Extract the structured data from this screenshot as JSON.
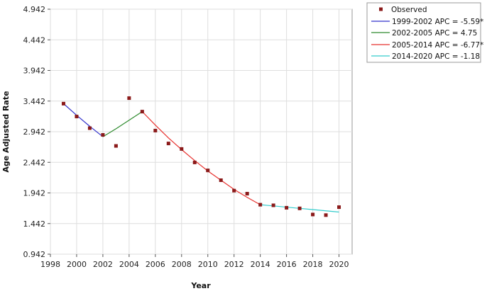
{
  "chart_data": {
    "type": "scatter",
    "xlabel": "Year",
    "ylabel": "Age Adjusted Rate",
    "xlim": [
      1998,
      2021
    ],
    "ylim": [
      0.942,
      4.942
    ],
    "x_ticks": [
      1998,
      2000,
      2002,
      2004,
      2006,
      2008,
      2010,
      2012,
      2014,
      2016,
      2018,
      2020
    ],
    "y_ticks": [
      0.942,
      1.442,
      1.942,
      2.442,
      2.942,
      3.442,
      3.942,
      4.442,
      4.942
    ],
    "x_tick_labels": [
      "1998",
      "2000",
      "2002",
      "2004",
      "2006",
      "2008",
      "2010",
      "2012",
      "2014",
      "2016",
      "2018",
      "2020"
    ],
    "y_tick_labels": [
      "0.942",
      "1.442",
      "1.942",
      "2.442",
      "2.942",
      "3.442",
      "3.942",
      "4.442",
      "4.942"
    ],
    "grid": true,
    "legend_position": "top-right",
    "observed": {
      "name": "Observed",
      "color": "#8b1a1a",
      "x": [
        1999,
        2000,
        2001,
        2002,
        2003,
        2004,
        2005,
        2006,
        2007,
        2008,
        2009,
        2010,
        2011,
        2012,
        2013,
        2014,
        2015,
        2016,
        2017,
        2018,
        2019,
        2020
      ],
      "y": [
        3.4,
        3.19,
        3.0,
        2.89,
        2.71,
        3.49,
        3.27,
        2.96,
        2.75,
        2.66,
        2.44,
        2.31,
        2.15,
        1.98,
        1.93,
        1.75,
        1.74,
        1.7,
        1.69,
        1.59,
        1.58,
        1.71
      ]
    },
    "segments": [
      {
        "label": "1999-2002 APC  = -5.59*",
        "color": "#3333cc",
        "x": [
          1999,
          2000,
          2001,
          2002
        ],
        "y": [
          3.4,
          3.21,
          3.03,
          2.86
        ]
      },
      {
        "label": "2002-2005 APC  =  4.75",
        "color": "#2e8b2e",
        "x": [
          2002,
          2003,
          2004,
          2005
        ],
        "y": [
          2.86,
          2.99,
          3.13,
          3.27
        ]
      },
      {
        "label": "2005-2014 APC  = -6.77*",
        "color": "#e8322f",
        "x": [
          2005,
          2006,
          2007,
          2008,
          2009,
          2010,
          2011,
          2012,
          2013,
          2014
        ],
        "y": [
          3.27,
          3.05,
          2.84,
          2.65,
          2.47,
          2.3,
          2.15,
          2.0,
          1.87,
          1.75
        ]
      },
      {
        "label": "2014-2020 APC  = -1.18",
        "color": "#33cccc",
        "x": [
          2014,
          2015,
          2016,
          2017,
          2018,
          2019,
          2020
        ],
        "y": [
          1.75,
          1.73,
          1.71,
          1.69,
          1.67,
          1.65,
          1.63
        ]
      }
    ]
  }
}
